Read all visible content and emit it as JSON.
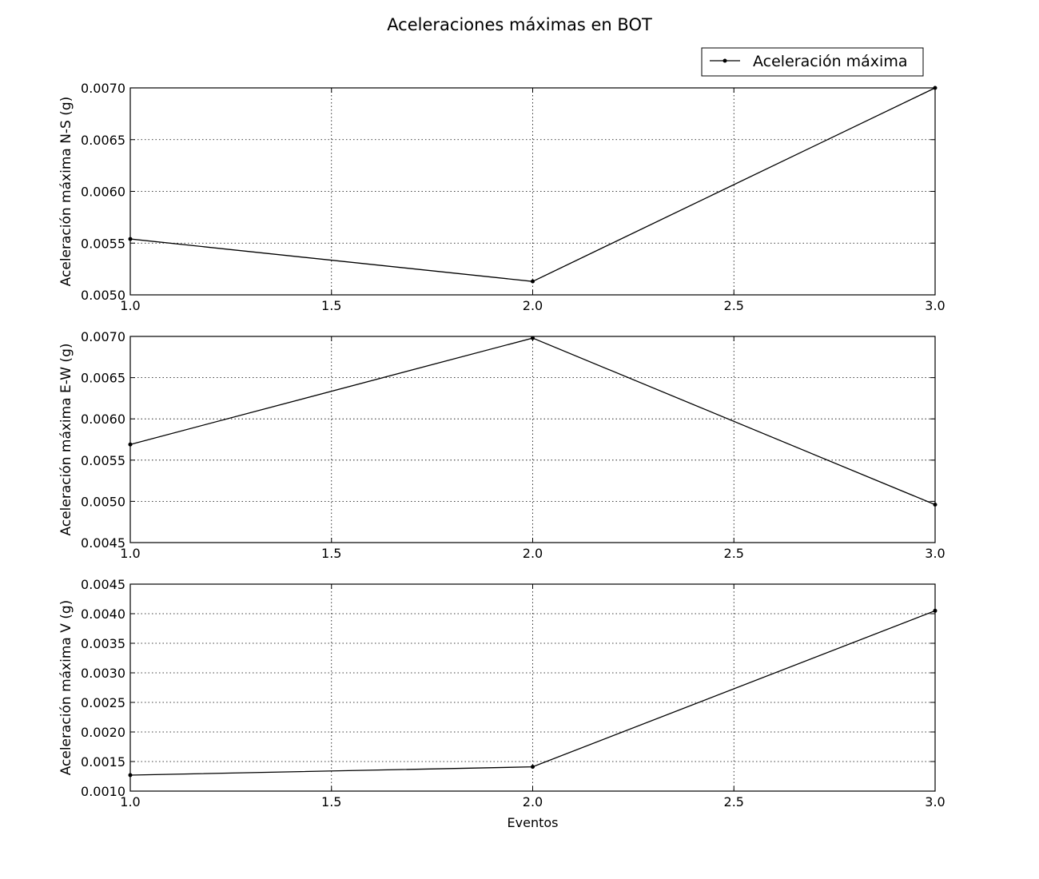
{
  "figure": {
    "title": "Aceleraciones máximas en BOT",
    "legend_label": "Aceleración máxima",
    "legend_position": "upper-right, above first subplot"
  },
  "chart_data": [
    {
      "type": "line",
      "title": "Aceleraciones máximas en BOT",
      "xlabel": "",
      "ylabel": "Aceleración máxima N-S (g)",
      "x": [
        1.0,
        2.0,
        3.0
      ],
      "series": [
        {
          "name": "Aceleración máxima",
          "values": [
            0.00554,
            0.00513,
            0.007
          ],
          "color": "#000000",
          "marker": "point"
        }
      ],
      "xlim": [
        1.0,
        3.0
      ],
      "ylim": [
        0.005,
        0.007
      ],
      "xticks": [
        "1.0",
        "1.5",
        "2.0",
        "2.5",
        "3.0"
      ],
      "yticks": [
        "0.0050",
        "0.0055",
        "0.0060",
        "0.0065",
        "0.0070"
      ],
      "grid": true,
      "legend": "upper-right"
    },
    {
      "type": "line",
      "xlabel": "",
      "ylabel": "Aceleración máxima E-W (g)",
      "x": [
        1.0,
        2.0,
        3.0
      ],
      "series": [
        {
          "values": [
            0.00569,
            0.00698,
            0.00496
          ],
          "color": "#000000",
          "marker": "point"
        }
      ],
      "xlim": [
        1.0,
        3.0
      ],
      "ylim": [
        0.0045,
        0.007
      ],
      "xticks": [
        "1.0",
        "1.5",
        "2.0",
        "2.5",
        "3.0"
      ],
      "yticks": [
        "0.0045",
        "0.0050",
        "0.0055",
        "0.0060",
        "0.0065",
        "0.0070"
      ],
      "grid": true
    },
    {
      "type": "line",
      "xlabel": "Eventos",
      "ylabel": "Aceleración máxima V (g)",
      "x": [
        1.0,
        2.0,
        3.0
      ],
      "series": [
        {
          "values": [
            0.00127,
            0.00141,
            0.00405
          ],
          "color": "#000000",
          "marker": "point"
        }
      ],
      "xlim": [
        1.0,
        3.0
      ],
      "ylim": [
        0.001,
        0.0045
      ],
      "xticks": [
        "1.0",
        "1.5",
        "2.0",
        "2.5",
        "3.0"
      ],
      "yticks": [
        "0.0010",
        "0.0015",
        "0.0020",
        "0.0025",
        "0.0030",
        "0.0035",
        "0.0040",
        "0.0045"
      ],
      "grid": true
    }
  ]
}
